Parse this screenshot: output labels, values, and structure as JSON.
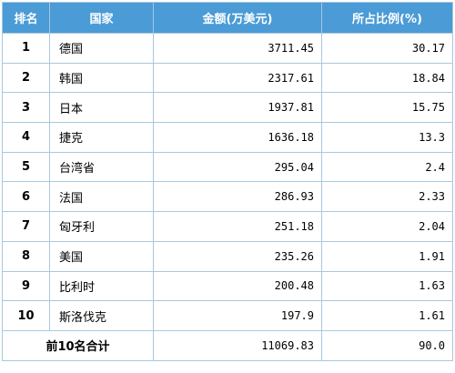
{
  "headers": {
    "rank": "排名",
    "country": "国家",
    "amount": "金额(万美元)",
    "share": "所占比例(%)"
  },
  "rows": [
    {
      "rank": "1",
      "country": "德国",
      "amount": "3711.45",
      "share": "30.17"
    },
    {
      "rank": "2",
      "country": "韩国",
      "amount": "2317.61",
      "share": "18.84"
    },
    {
      "rank": "3",
      "country": "日本",
      "amount": "1937.81",
      "share": "15.75"
    },
    {
      "rank": "4",
      "country": "捷克",
      "amount": "1636.18",
      "share": "13.3"
    },
    {
      "rank": "5",
      "country": "台湾省",
      "amount": "295.04",
      "share": "2.4"
    },
    {
      "rank": "6",
      "country": "法国",
      "amount": "286.93",
      "share": "2.33"
    },
    {
      "rank": "7",
      "country": "匈牙利",
      "amount": "251.18",
      "share": "2.04"
    },
    {
      "rank": "8",
      "country": "美国",
      "amount": "235.26",
      "share": "1.91"
    },
    {
      "rank": "9",
      "country": "比利时",
      "amount": "200.48",
      "share": "1.63"
    },
    {
      "rank": "10",
      "country": "斯洛伐克",
      "amount": "197.9",
      "share": "1.61"
    }
  ],
  "total": {
    "label": "前10名合计",
    "amount": "11069.83",
    "share": "90.0"
  }
}
